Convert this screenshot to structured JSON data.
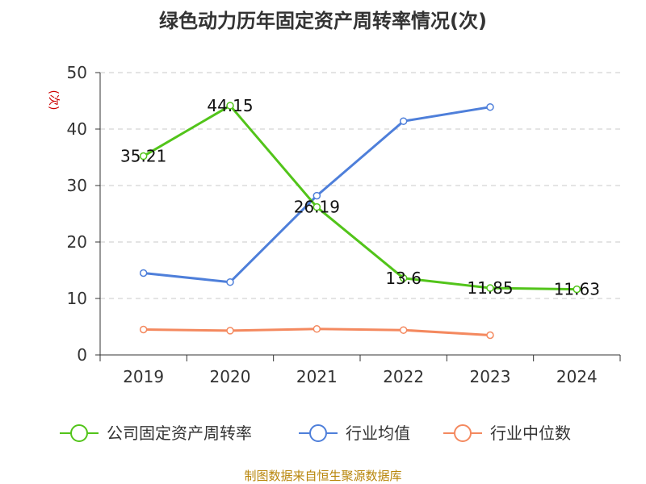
{
  "chart_data": {
    "type": "line",
    "title": "绿色动力历年固定资产周转率情况(次)",
    "ylabel": "(次)",
    "xlabel": "",
    "categories": [
      "2019",
      "2020",
      "2021",
      "2022",
      "2023",
      "2024"
    ],
    "ylim": [
      0,
      50
    ],
    "yticks": [
      0,
      10,
      20,
      30,
      40,
      50
    ],
    "grid": true,
    "legend_position": "bottom",
    "series": [
      {
        "name": "公司固定资产周转率",
        "color": "#52c41a",
        "values": [
          35.21,
          44.15,
          26.19,
          13.6,
          11.85,
          11.63
        ],
        "labels": [
          "35.21",
          "44.15",
          "26.19",
          "13.6",
          "11.85",
          "11.63"
        ]
      },
      {
        "name": "行业均值",
        "color": "#4e7fda",
        "values": [
          14.5,
          12.9,
          28.2,
          41.4,
          43.9,
          null
        ]
      },
      {
        "name": "行业中位数",
        "color": "#f4895f",
        "values": [
          4.5,
          4.3,
          4.6,
          4.4,
          3.5,
          null
        ]
      }
    ],
    "source": "制图数据来自恒生聚源数据库"
  }
}
